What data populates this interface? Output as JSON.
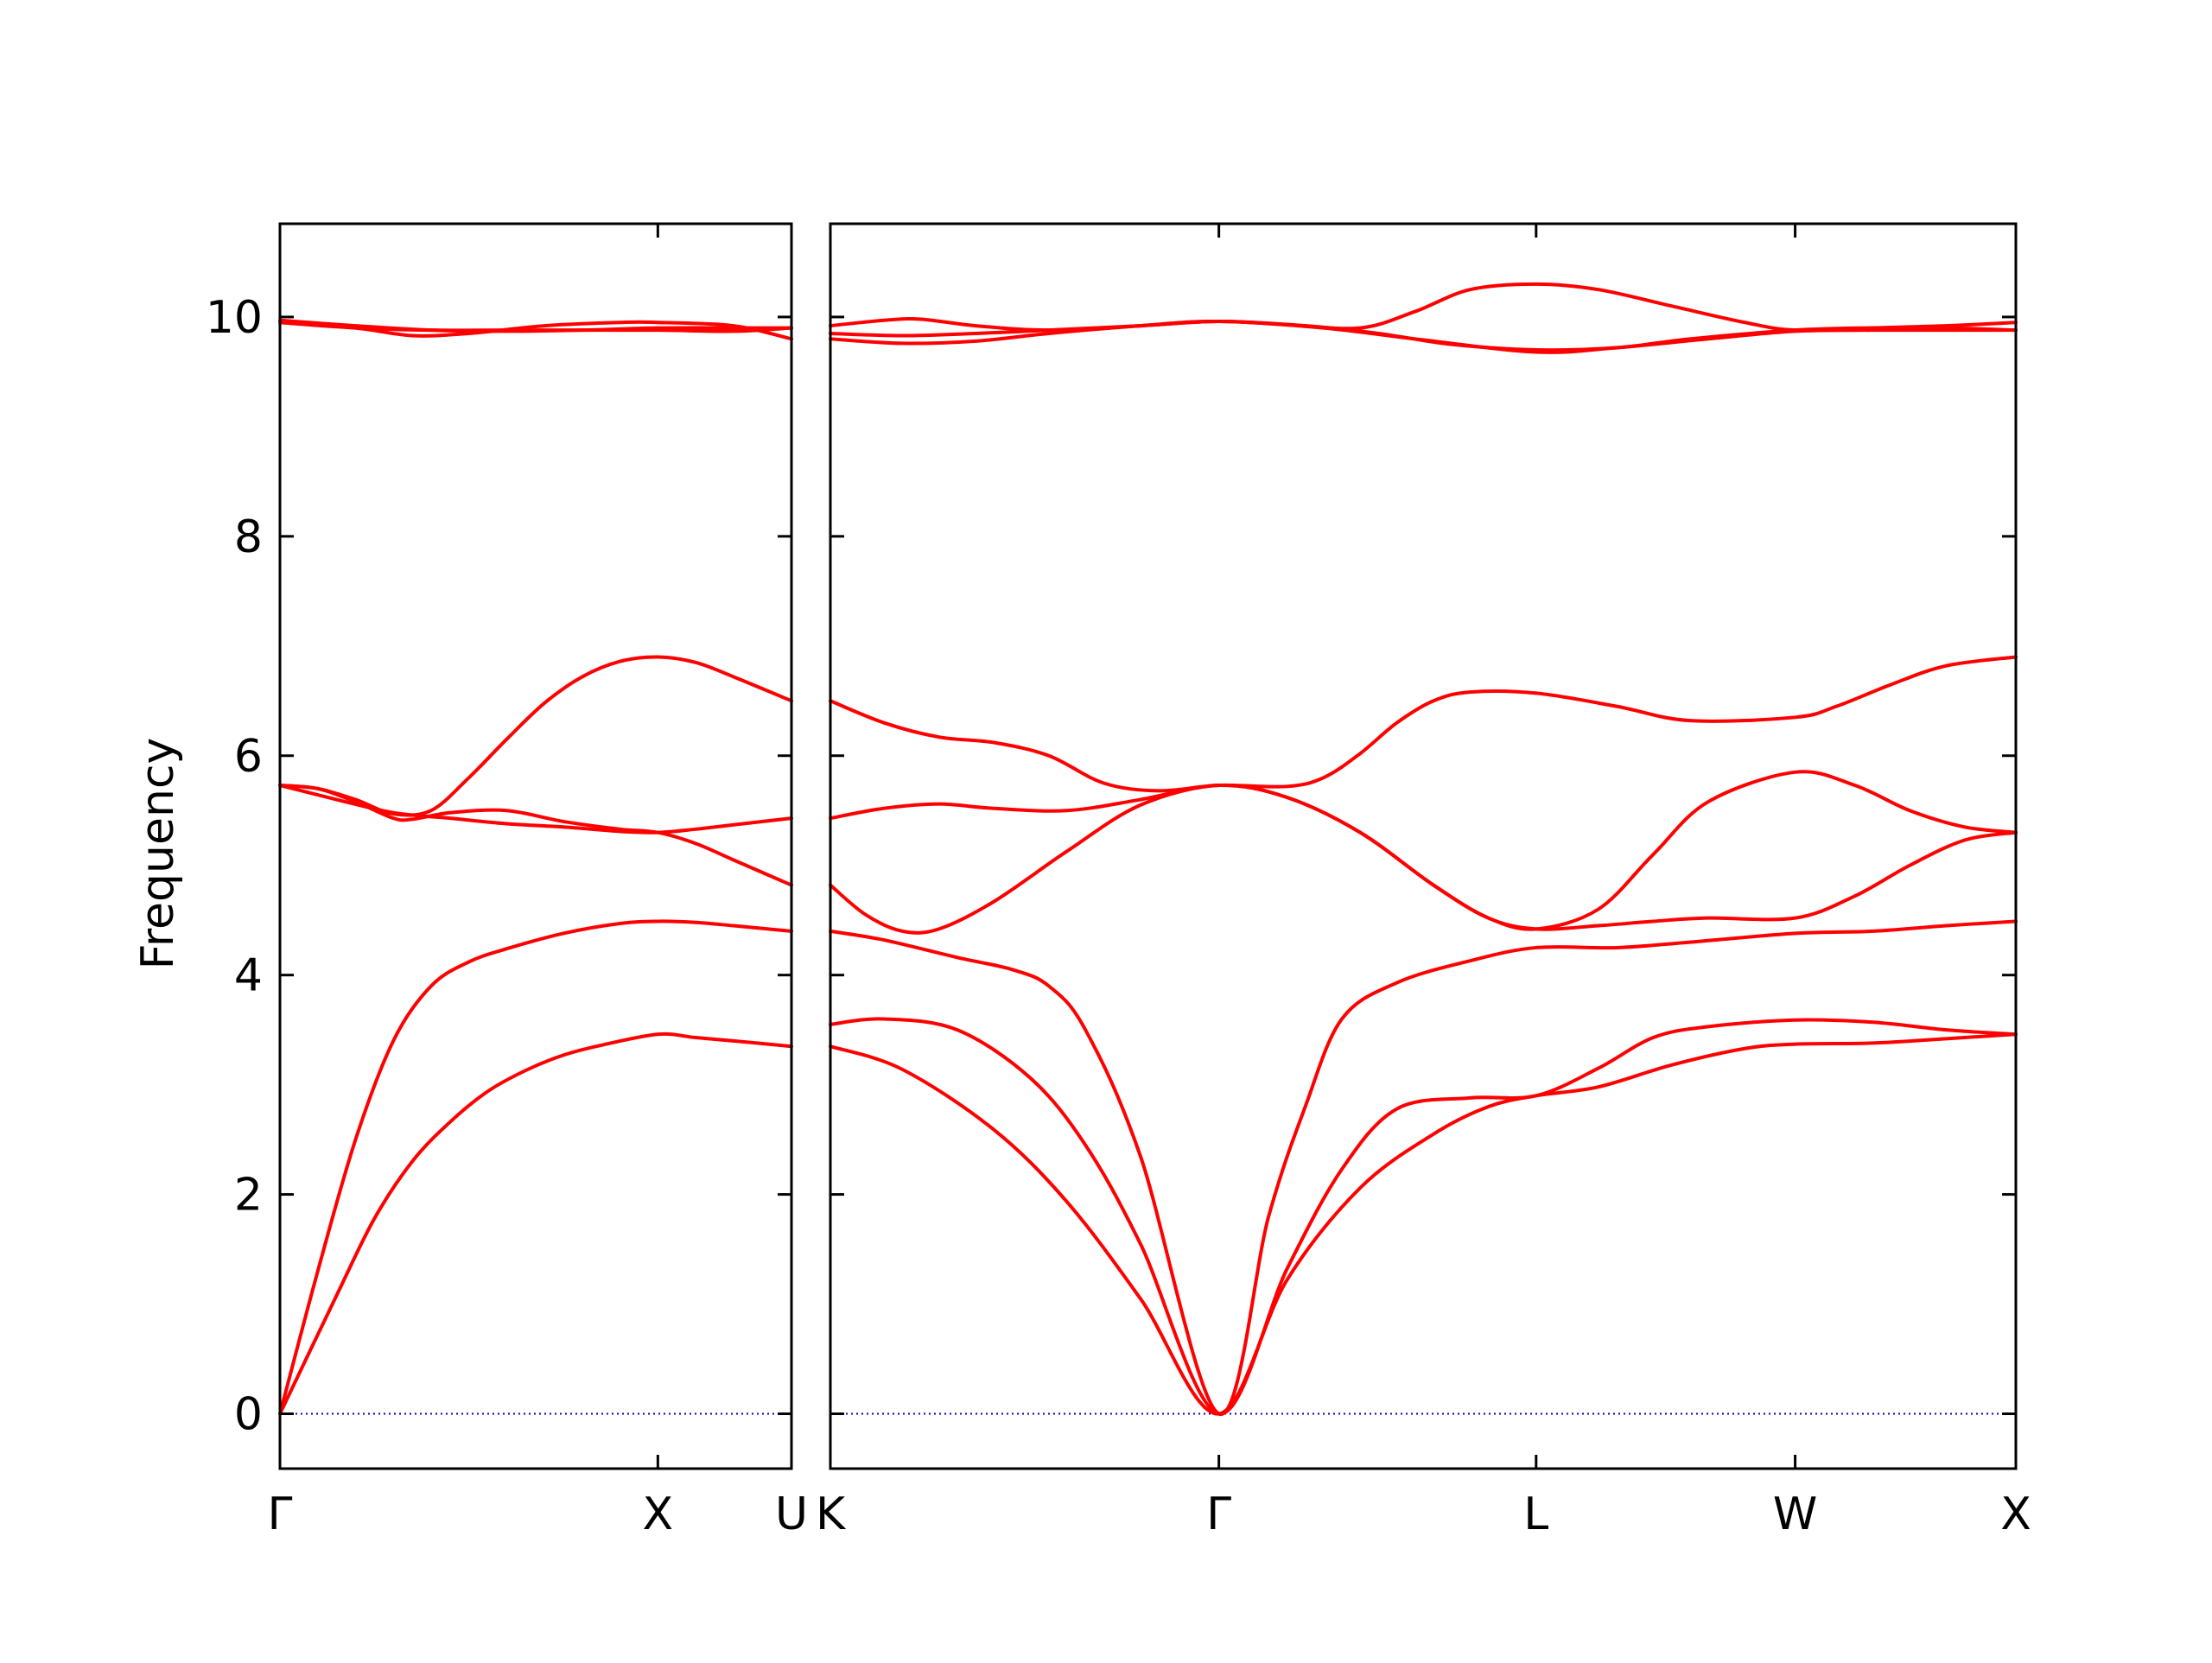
{
  "chart_data": {
    "type": "line",
    "ylabel": "Frequency",
    "ylim": [
      -0.5,
      10.85
    ],
    "yticks": [
      0,
      2,
      4,
      6,
      8,
      10
    ],
    "grid": false,
    "legend": "none",
    "colors": {
      "bands": "#ff0000",
      "zero_line": "#0000cc",
      "axes": "#000000"
    },
    "zero_line": {
      "y": 0,
      "style": "dotted"
    },
    "panels": [
      {
        "name": "gamma-x-u",
        "xlim": [
          0,
          1.3536
        ],
        "high_symmetry_points": [
          {
            "label": "Γ",
            "x": 0
          },
          {
            "label": "X",
            "x": 1.0
          },
          {
            "label": "U",
            "x": 1.3536
          }
        ],
        "series": [
          {
            "x": [
              0,
              0.15,
              0.25,
              0.35,
              0.45,
              0.55,
              0.65,
              0.75,
              0.85,
              1.0,
              1.1,
              1.2,
              1.3536
            ],
            "values": [
              0,
              1.08,
              1.78,
              2.3,
              2.66,
              2.94,
              3.13,
              3.27,
              3.36,
              3.46,
              3.43,
              3.4,
              3.35
            ]
          },
          {
            "x": [
              0,
              0.1,
              0.2,
              0.3,
              0.4,
              0.5,
              0.6,
              0.75,
              0.9,
              1.0,
              1.1,
              1.2,
              1.3536
            ],
            "values": [
              0,
              1.3,
              2.5,
              3.4,
              3.9,
              4.12,
              4.24,
              4.38,
              4.47,
              4.49,
              4.48,
              4.45,
              4.4
            ]
          },
          {
            "x": [
              0,
              0.15,
              0.3,
              0.45,
              0.6,
              0.75,
              0.9,
              1.0,
              1.1,
              1.2,
              1.3536
            ],
            "values": [
              5.73,
              5.6,
              5.48,
              5.43,
              5.38,
              5.35,
              5.31,
              5.3,
              5.33,
              5.37,
              5.43
            ]
          },
          {
            "x": [
              0,
              0.1,
              0.2,
              0.3,
              0.35,
              0.45,
              0.6,
              0.75,
              0.9,
              1.0,
              1.1,
              1.2,
              1.3536
            ],
            "values": [
              5.73,
              5.7,
              5.58,
              5.43,
              5.42,
              5.48,
              5.5,
              5.4,
              5.33,
              5.3,
              5.2,
              5.05,
              4.82
            ]
          },
          {
            "x": [
              0,
              0.1,
              0.2,
              0.3,
              0.4,
              0.5,
              0.6,
              0.7,
              0.8,
              0.9,
              1.0,
              1.1,
              1.2,
              1.3536
            ],
            "values": [
              5.73,
              5.7,
              5.6,
              5.47,
              5.5,
              5.8,
              6.15,
              6.48,
              6.72,
              6.86,
              6.9,
              6.85,
              6.72,
              6.5
            ]
          },
          {
            "x": [
              0,
              0.2,
              0.4,
              0.6,
              0.8,
              1.0,
              1.2,
              1.3536
            ],
            "values": [
              9.95,
              9.9,
              9.88,
              9.88,
              9.88,
              9.88,
              9.87,
              9.9
            ]
          },
          {
            "x": [
              0,
              0.2,
              0.35,
              0.5,
              0.7,
              0.9,
              1.0,
              1.2,
              1.3536
            ],
            "values": [
              9.95,
              9.9,
              9.83,
              9.85,
              9.92,
              9.95,
              9.95,
              9.92,
              9.8
            ]
          },
          {
            "x": [
              0,
              0.2,
              0.4,
              0.6,
              0.8,
              1.0,
              1.2,
              1.3536
            ],
            "values": [
              9.97,
              9.92,
              9.88,
              9.87,
              9.88,
              9.9,
              9.9,
              9.9
            ]
          }
        ]
      },
      {
        "name": "k-gamma-l-w-x",
        "xlim": [
          1.3536,
          4.5898
        ],
        "high_symmetry_points": [
          {
            "label": "K",
            "x": 1.3536
          },
          {
            "label": "Γ",
            "x": 2.4142
          },
          {
            "label": "L",
            "x": 3.2802
          },
          {
            "label": "W",
            "x": 3.9873
          },
          {
            "label": "X",
            "x": 4.5898
          }
        ],
        "series": [
          {
            "x": [
              1.3536,
              1.55,
              1.8,
              2.0,
              2.2,
              2.4142,
              2.6,
              2.8,
              3.0,
              3.15,
              3.2802,
              3.45,
              3.65,
              3.85,
              3.9873,
              4.2,
              4.4,
              4.5898
            ],
            "values": [
              3.35,
              3.14,
              2.59,
              1.93,
              1.05,
              0,
              1.22,
              2.06,
              2.55,
              2.8,
              2.9,
              2.98,
              3.18,
              3.33,
              3.37,
              3.38,
              3.42,
              3.46
            ]
          },
          {
            "x": [
              1.3536,
              1.5,
              1.7,
              1.9,
              2.05,
              2.2,
              2.4142,
              2.6,
              2.75,
              2.9,
              3.1,
              3.2802,
              3.45,
              3.6,
              3.75,
              3.9873,
              4.2,
              4.4,
              4.5898
            ],
            "values": [
              3.55,
              3.6,
              3.5,
              3.06,
              2.45,
              1.55,
              0,
              1.32,
              2.23,
              2.78,
              2.88,
              2.9,
              3.15,
              3.43,
              3.53,
              3.59,
              3.57,
              3.5,
              3.46
            ]
          },
          {
            "x": [
              1.3536,
              1.5,
              1.7,
              1.85,
              1.95,
              2.05,
              2.2,
              2.4142,
              2.55,
              2.65,
              2.75,
              2.9,
              3.1,
              3.2802,
              3.5,
              3.7,
              3.9873,
              4.2,
              4.4,
              4.5898
            ],
            "values": [
              4.4,
              4.32,
              4.16,
              4.05,
              3.9,
              3.5,
              2.35,
              0,
              1.8,
              2.8,
              3.6,
              3.93,
              4.13,
              4.25,
              4.25,
              4.3,
              4.38,
              4.4,
              4.45,
              4.49
            ]
          },
          {
            "x": [
              1.3536,
              1.45,
              1.55,
              1.65,
              1.8,
              2.0,
              2.2,
              2.4142,
              2.6,
              2.8,
              3.0,
              3.15,
              3.2802,
              3.45,
              3.6,
              3.75,
              3.9873,
              4.15,
              4.3,
              4.45,
              4.5898
            ],
            "values": [
              4.82,
              4.55,
              4.4,
              4.42,
              4.67,
              5.13,
              5.55,
              5.73,
              5.62,
              5.3,
              4.82,
              4.52,
              4.42,
              4.45,
              4.49,
              4.52,
              4.52,
              4.72,
              5.0,
              5.23,
              5.3
            ]
          },
          {
            "x": [
              1.3536,
              1.5,
              1.65,
              1.8,
              2.0,
              2.2,
              2.4142,
              2.6,
              2.8,
              3.0,
              3.15,
              3.2802,
              3.45,
              3.6,
              3.75,
              3.9873,
              4.15,
              4.3,
              4.45,
              4.5898
            ],
            "values": [
              5.43,
              5.52,
              5.56,
              5.52,
              5.5,
              5.6,
              5.73,
              5.62,
              5.3,
              4.82,
              4.52,
              4.42,
              4.6,
              5.1,
              5.58,
              5.85,
              5.73,
              5.5,
              5.35,
              5.3
            ]
          },
          {
            "x": [
              1.3536,
              1.5,
              1.65,
              1.8,
              1.95,
              2.1,
              2.25,
              2.4142,
              2.6,
              2.7,
              2.8,
              2.9,
              3.0,
              3.1,
              3.2802,
              3.5,
              3.7,
              3.9873,
              4.1,
              4.25,
              4.4,
              4.5898
            ],
            "values": [
              6.5,
              6.3,
              6.17,
              6.12,
              6.0,
              5.75,
              5.68,
              5.73,
              5.72,
              5.8,
              6.02,
              6.3,
              6.5,
              6.58,
              6.57,
              6.45,
              6.32,
              6.35,
              6.45,
              6.65,
              6.82,
              6.9
            ]
          },
          {
            "x": [
              1.3536,
              1.55,
              1.75,
              1.95,
              2.2,
              2.4142,
              2.7,
              2.95,
              3.2802,
              3.5,
              3.75,
              3.9873,
              4.2,
              4.4,
              4.5898
            ],
            "values": [
              9.8,
              9.76,
              9.78,
              9.85,
              9.92,
              9.96,
              9.9,
              9.8,
              9.68,
              9.72,
              9.8,
              9.87,
              9.88,
              9.88,
              9.88
            ]
          },
          {
            "x": [
              1.3536,
              1.55,
              1.75,
              1.95,
              2.2,
              2.4142,
              2.65,
              2.85,
              3.05,
              3.2802,
              3.5,
              3.7,
              3.9873,
              4.2,
              4.4,
              4.5898
            ],
            "values": [
              9.85,
              9.83,
              9.85,
              9.88,
              9.92,
              9.96,
              9.92,
              9.85,
              9.75,
              9.7,
              9.72,
              9.8,
              9.88,
              9.9,
              9.9,
              9.88
            ]
          },
          {
            "x": [
              1.3536,
              1.5,
              1.6,
              1.75,
              1.95,
              2.2,
              2.4142,
              2.6,
              2.8,
              2.95,
              3.1,
              3.2802,
              3.45,
              3.65,
              3.85,
              3.9873,
              4.2,
              4.4,
              4.5898
            ],
            "values": [
              9.92,
              9.97,
              9.98,
              9.92,
              9.88,
              9.92,
              9.96,
              9.93,
              9.9,
              10.05,
              10.25,
              10.3,
              10.25,
              10.1,
              9.95,
              9.88,
              9.9,
              9.92,
              9.95
            ]
          }
        ]
      }
    ]
  }
}
